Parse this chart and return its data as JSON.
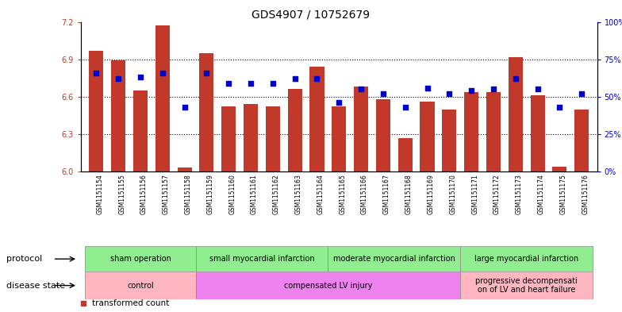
{
  "title": "GDS4907 / 10752679",
  "samples": [
    "GSM1151154",
    "GSM1151155",
    "GSM1151156",
    "GSM1151157",
    "GSM1151158",
    "GSM1151159",
    "GSM1151160",
    "GSM1151161",
    "GSM1151162",
    "GSM1151163",
    "GSM1151164",
    "GSM1151165",
    "GSM1151166",
    "GSM1151167",
    "GSM1151168",
    "GSM1151169",
    "GSM1151170",
    "GSM1151171",
    "GSM1151172",
    "GSM1151173",
    "GSM1151174",
    "GSM1151175",
    "GSM1151176"
  ],
  "bar_values": [
    6.97,
    6.89,
    6.65,
    7.17,
    6.03,
    6.95,
    6.52,
    6.54,
    6.52,
    6.66,
    6.84,
    6.52,
    6.68,
    6.58,
    6.27,
    6.56,
    6.5,
    6.64,
    6.64,
    6.92,
    6.61,
    6.04,
    6.5
  ],
  "percentile_values": [
    66,
    62,
    63,
    66,
    43,
    66,
    59,
    59,
    59,
    62,
    62,
    46,
    55,
    52,
    43,
    56,
    52,
    54,
    55,
    62,
    55,
    43,
    52
  ],
  "bar_color": "#C0392B",
  "dot_color": "#0000CC",
  "ylim_left": [
    6.0,
    7.2
  ],
  "ylim_right": [
    0,
    100
  ],
  "yticks_left": [
    6.0,
    6.3,
    6.6,
    6.9,
    7.2
  ],
  "yticks_right": [
    0,
    25,
    50,
    75,
    100
  ],
  "ytick_labels_right": [
    "0%",
    "25%",
    "50%",
    "75%",
    "100%"
  ],
  "grid_yticks": [
    6.3,
    6.6,
    6.9
  ],
  "protocol_groups": [
    {
      "label": "sham operation",
      "start": 0,
      "end": 4
    },
    {
      "label": "small myocardial infarction",
      "start": 5,
      "end": 10
    },
    {
      "label": "moderate myocardial infarction",
      "start": 11,
      "end": 16
    },
    {
      "label": "large myocardial infarction",
      "start": 17,
      "end": 22
    }
  ],
  "disease_groups": [
    {
      "label": "control",
      "start": 0,
      "end": 4,
      "color": "#FFB6C1"
    },
    {
      "label": "compensated LV injury",
      "start": 5,
      "end": 16,
      "color": "#EE82EE"
    },
    {
      "label": "progressive decompensati\non of LV and heart failure",
      "start": 17,
      "end": 22,
      "color": "#FFB6C1"
    }
  ],
  "protocol_color": "#90EE90",
  "bar_width": 0.65,
  "fig_width": 7.84,
  "fig_height": 3.93,
  "dpi": 100
}
